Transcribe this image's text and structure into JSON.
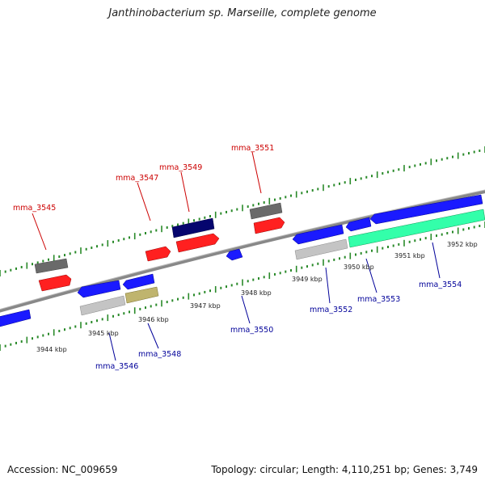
{
  "title": "Janthinobacterium sp. Marseille, complete genome",
  "footer": {
    "accession": "Accession: NC_009659",
    "summary": "Topology: circular; Length: 4,110,251 bp; Genes: 3,749"
  },
  "colors": {
    "backbone": "#808080",
    "forward_tick": "#2a8a2a",
    "label_forward": "#cc0000",
    "label_reverse": "#000099",
    "gene_red": "#ff1a1a",
    "gene_blue": "#1a1aff",
    "gene_navy": "#00006a",
    "gene_dark_gray": "#666666",
    "gene_light_gray": "#c8c8c8",
    "gene_khaki": "#bfb46e",
    "gene_aqua": "#33ffaa"
  },
  "scale_ticks": [
    "3944 kbp",
    "3945 kbp",
    "3946 kbp",
    "3947 kbp",
    "3948 kbp",
    "3949 kbp",
    "3950 kbp",
    "3951 kbp",
    "3952 kbp"
  ],
  "forward_labels": [
    "mma_3545",
    "mma_3547",
    "mma_3549",
    "mma_3551"
  ],
  "reverse_labels": [
    "mma_3546",
    "mma_3548",
    "mma_3550",
    "mma_3552",
    "mma_3553",
    "mma_3554"
  ]
}
